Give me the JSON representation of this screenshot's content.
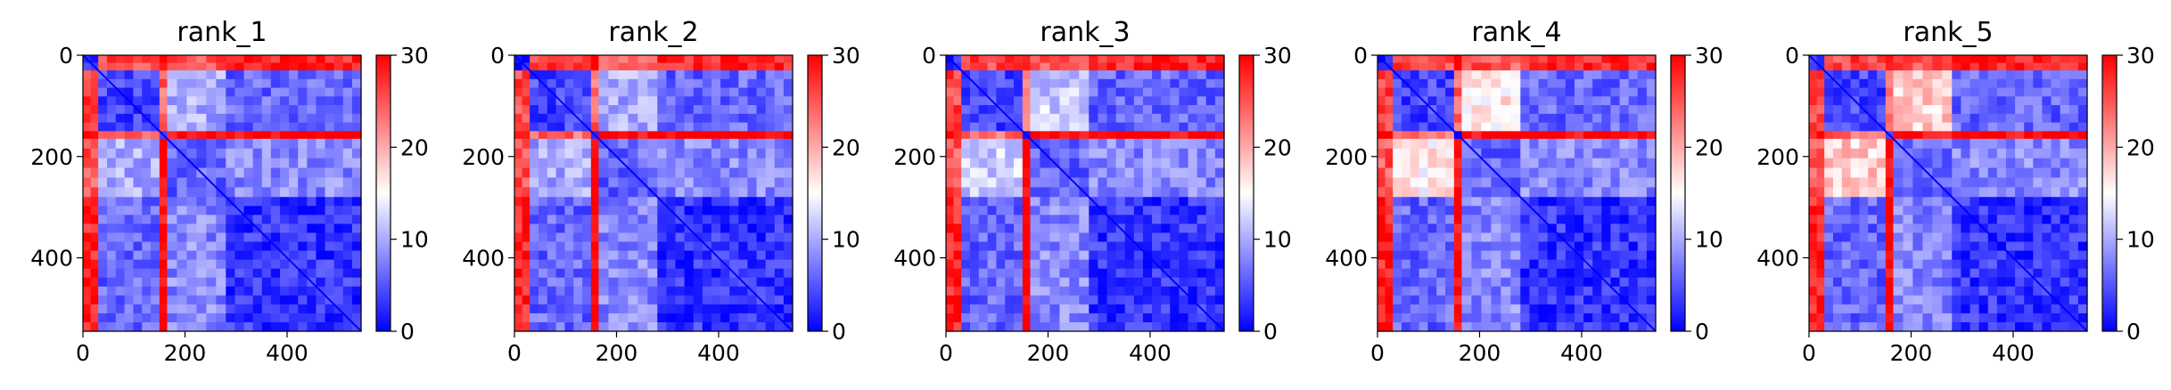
{
  "chart_data": [
    {
      "type": "heatmap",
      "title": "rank_1",
      "x_ticks": [
        "0",
        "200",
        "400"
      ],
      "y_ticks": [
        "0",
        "200",
        "400"
      ],
      "xlim": [
        0,
        545
      ],
      "ylim": [
        545,
        0
      ],
      "colorbar": {
        "ticks": [
          "0",
          "10",
          "20",
          "30"
        ],
        "range": [
          0,
          30
        ],
        "colormap": "bwr"
      },
      "block_boundaries": [
        0,
        30,
        150,
        165,
        280,
        545
      ]
    },
    {
      "type": "heatmap",
      "title": "rank_2",
      "x_ticks": [
        "0",
        "200",
        "400"
      ],
      "y_ticks": [
        "0",
        "200",
        "400"
      ],
      "xlim": [
        0,
        545
      ],
      "ylim": [
        545,
        0
      ],
      "colorbar": {
        "ticks": [
          "0",
          "10",
          "20",
          "30"
        ],
        "range": [
          0,
          30
        ],
        "colormap": "bwr"
      },
      "block_boundaries": [
        0,
        30,
        150,
        165,
        280,
        545
      ]
    },
    {
      "type": "heatmap",
      "title": "rank_3",
      "x_ticks": [
        "0",
        "200",
        "400"
      ],
      "y_ticks": [
        "0",
        "200",
        "400"
      ],
      "xlim": [
        0,
        545
      ],
      "ylim": [
        545,
        0
      ],
      "colorbar": {
        "ticks": [
          "0",
          "10",
          "20",
          "30"
        ],
        "range": [
          0,
          30
        ],
        "colormap": "bwr"
      },
      "block_boundaries": [
        0,
        30,
        150,
        165,
        280,
        545
      ]
    },
    {
      "type": "heatmap",
      "title": "rank_4",
      "x_ticks": [
        "0",
        "200",
        "400"
      ],
      "y_ticks": [
        "0",
        "200",
        "400"
      ],
      "xlim": [
        0,
        545
      ],
      "ylim": [
        545,
        0
      ],
      "colorbar": {
        "ticks": [
          "0",
          "10",
          "20",
          "30"
        ],
        "range": [
          0,
          30
        ],
        "colormap": "bwr"
      },
      "block_boundaries": [
        0,
        30,
        150,
        165,
        280,
        545
      ]
    },
    {
      "type": "heatmap",
      "title": "rank_5",
      "x_ticks": [
        "0",
        "200",
        "400"
      ],
      "y_ticks": [
        "0",
        "200",
        "400"
      ],
      "xlim": [
        0,
        545
      ],
      "ylim": [
        545,
        0
      ],
      "colorbar": {
        "ticks": [
          "0",
          "10",
          "20",
          "30"
        ],
        "range": [
          0,
          30
        ],
        "colormap": "bwr"
      },
      "block_boundaries": [
        0,
        30,
        150,
        165,
        280,
        545
      ]
    }
  ]
}
